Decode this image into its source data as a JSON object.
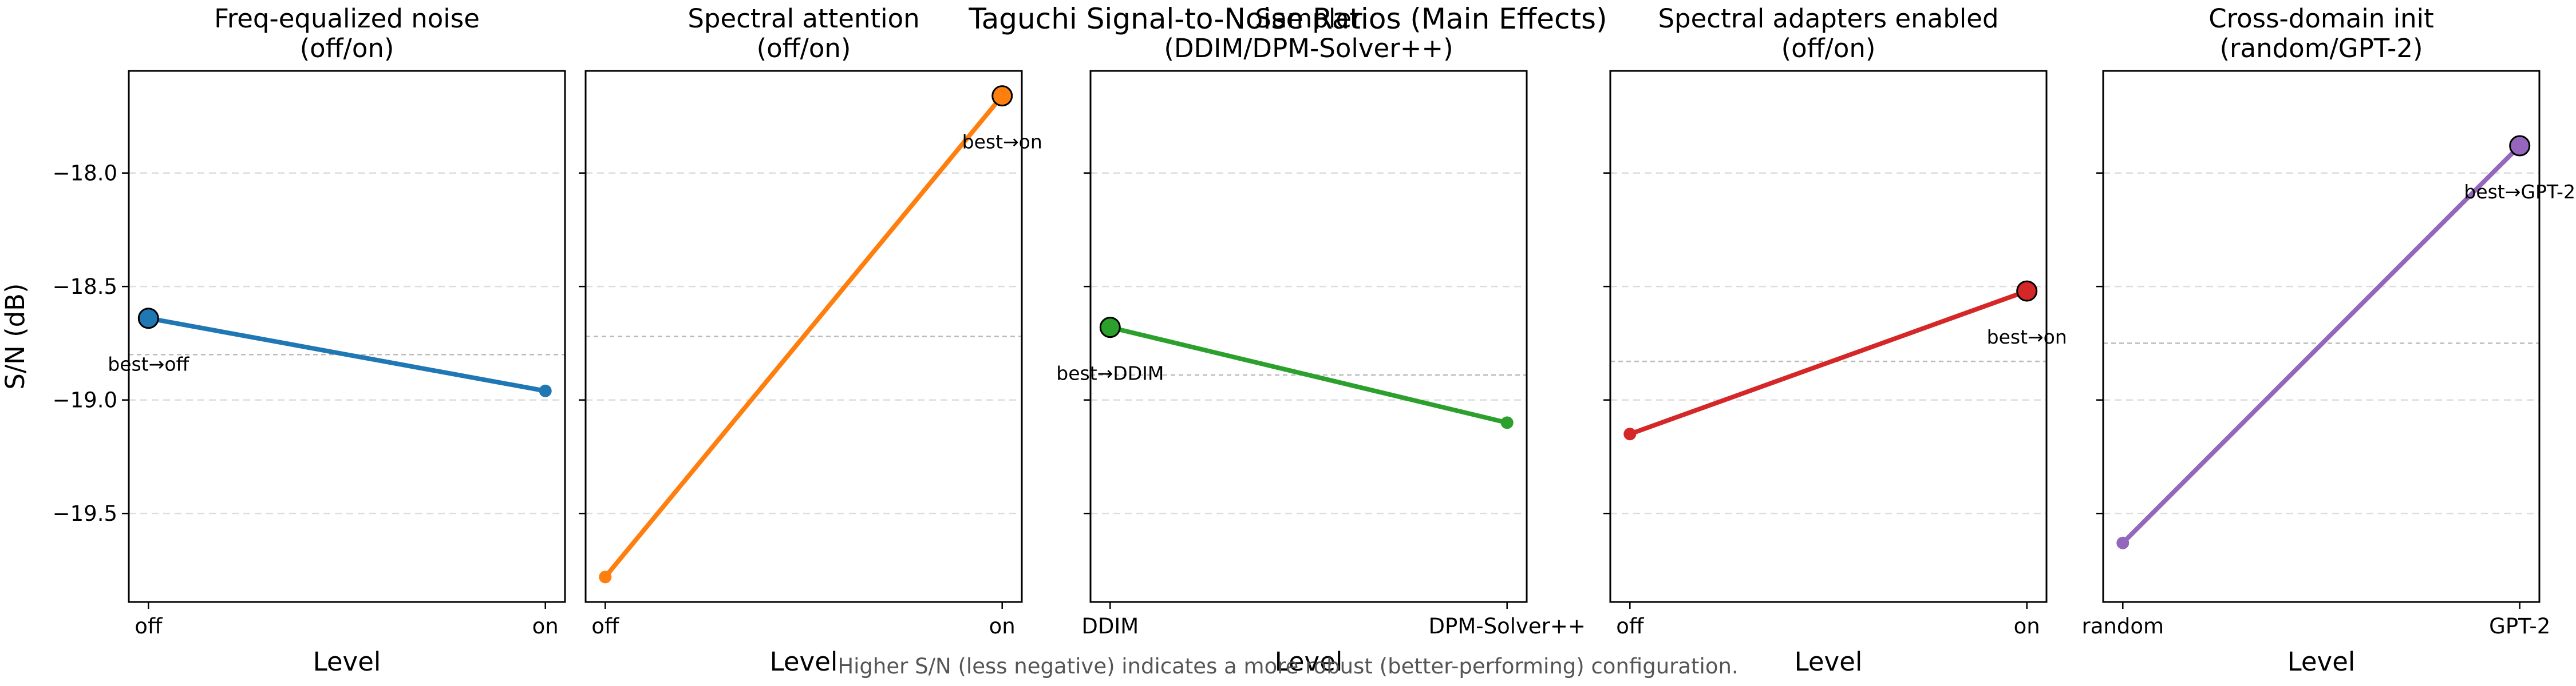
{
  "figure": {
    "suptitle": "Taguchi Signal-to-Noise Ratios (Main Effects)",
    "caption": "Higher S/N (less negative) indicates a more robust (better-performing) configuration."
  },
  "chart_data": [
    {
      "type": "line",
      "title": "Freq-equalized noise\n(off/on)",
      "categories": [
        "off",
        "on"
      ],
      "values": [
        -18.64,
        -18.96
      ],
      "mean": -18.8,
      "best_label": "best→off",
      "best_index": 0,
      "color": "#1f77b4",
      "xlabel": "Level",
      "ylabel": "S/N (dB)",
      "ylim": [
        -19.89,
        -17.55
      ],
      "yticks": [
        -18.0,
        -18.5,
        -19.0,
        -19.5
      ],
      "grid": true
    },
    {
      "type": "line",
      "title": "Spectral attention\n(off/on)",
      "categories": [
        "off",
        "on"
      ],
      "values": [
        -19.78,
        -17.66
      ],
      "mean": -18.72,
      "best_label": "best→on",
      "best_index": 1,
      "color": "#ff7f0e",
      "xlabel": "Level",
      "ylabel": "",
      "ylim": [
        -19.89,
        -17.55
      ],
      "yticks": [
        -18.0,
        -18.5,
        -19.0,
        -19.5
      ],
      "grid": true
    },
    {
      "type": "line",
      "title": "Sampler\n(DDIM/DPM-Solver++)",
      "categories": [
        "DDIM",
        "DPM-Solver++"
      ],
      "values": [
        -18.68,
        -19.1
      ],
      "mean": -18.89,
      "best_label": "best→DDIM",
      "best_index": 0,
      "color": "#2ca02c",
      "xlabel": "Level",
      "ylabel": "",
      "ylim": [
        -19.89,
        -17.55
      ],
      "yticks": [
        -18.0,
        -18.5,
        -19.0,
        -19.5
      ],
      "grid": true
    },
    {
      "type": "line",
      "title": "Spectral adapters enabled\n(off/on)",
      "categories": [
        "off",
        "on"
      ],
      "values": [
        -19.15,
        -18.52
      ],
      "mean": -18.83,
      "best_label": "best→on",
      "best_index": 1,
      "color": "#d62728",
      "xlabel": "Level",
      "ylabel": "",
      "ylim": [
        -19.89,
        -17.55
      ],
      "yticks": [
        -18.0,
        -18.5,
        -19.0,
        -19.5
      ],
      "grid": true
    },
    {
      "type": "line",
      "title": "Cross-domain init\n(random/GPT-2)",
      "categories": [
        "random",
        "GPT-2"
      ],
      "values": [
        -19.63,
        -17.88
      ],
      "mean": -18.75,
      "best_label": "best→GPT-2",
      "best_index": 1,
      "color": "#9467bd",
      "xlabel": "Level",
      "ylabel": "",
      "ylim": [
        -19.89,
        -17.55
      ],
      "yticks": [
        -18.0,
        -18.5,
        -19.0,
        -19.5
      ],
      "grid": true
    }
  ]
}
